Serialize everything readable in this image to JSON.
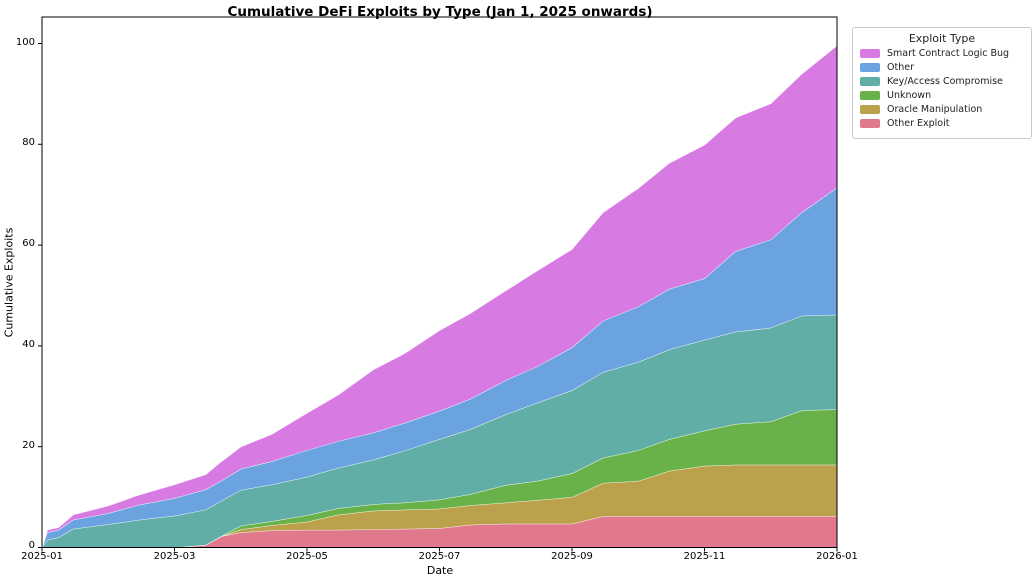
{
  "chart_data": {
    "type": "area",
    "stacked": true,
    "title": "Cumulative DeFi Exploits by Type (Jan 1, 2025 onwards)",
    "xlabel": "Date",
    "ylabel": "Cumulative Exploits",
    "legend_title": "Exploit Type",
    "legend_position": "outside upper right",
    "grid": false,
    "ylim": [
      0,
      105
    ],
    "y_ticks": [
      0,
      20,
      40,
      60,
      80,
      100
    ],
    "y_tick_labels": [
      "0",
      "20",
      "40",
      "60",
      "80",
      "100"
    ],
    "x_tick_labels": [
      "2025-01",
      "2025-03",
      "2025-05",
      "2025-07",
      "2025-09",
      "2025-11",
      "2026-01"
    ],
    "x_tick_months": [
      0,
      2,
      4,
      6,
      8,
      10,
      12
    ],
    "dates": [
      "2025-01-01",
      "2025-01-03",
      "2025-01-08",
      "2025-01-15",
      "2025-02-01",
      "2025-02-15",
      "2025-03-01",
      "2025-03-15",
      "2025-03-22",
      "2025-04-01",
      "2025-04-15",
      "2025-05-01",
      "2025-05-15",
      "2025-06-01",
      "2025-06-15",
      "2025-07-01",
      "2025-07-15",
      "2025-08-01",
      "2025-08-15",
      "2025-09-01",
      "2025-09-15",
      "2025-10-01",
      "2025-10-15",
      "2025-11-01",
      "2025-11-15",
      "2025-12-01",
      "2025-12-15",
      "2026-01-01"
    ],
    "x_months": [
      0,
      0.08,
      0.25,
      0.47,
      1,
      1.47,
      2,
      2.47,
      2.7,
      3,
      3.47,
      4,
      4.47,
      5,
      5.47,
      6,
      6.47,
      7,
      7.47,
      8,
      8.47,
      9,
      9.47,
      10,
      10.47,
      11,
      11.47,
      12
    ],
    "series": [
      {
        "name": "Other Exploit",
        "color": "#e1798c",
        "values": [
          0,
          0,
          0,
          0,
          0,
          0,
          0,
          0.5,
          2.2,
          3,
          3.4,
          3.5,
          3.5,
          3.6,
          3.7,
          3.8,
          4.5,
          4.7,
          4.7,
          4.7,
          6.2,
          6.2,
          6.2,
          6.2,
          6.2,
          6.2,
          6.2,
          6.2
        ]
      },
      {
        "name": "Oracle Manipulation",
        "color": "#bba14b",
        "values": [
          0,
          0,
          0,
          0,
          0,
          0,
          0,
          0,
          0,
          0.6,
          1,
          1.6,
          3,
          3.7,
          3.8,
          3.9,
          3.9,
          4.2,
          4.7,
          5.3,
          6.6,
          7,
          9,
          10,
          10.2,
          10.2,
          10.2,
          10.2
        ]
      },
      {
        "name": "Unknown",
        "color": "#69b24a",
        "values": [
          0,
          0,
          0,
          0,
          0,
          0,
          0,
          0,
          0,
          0.7,
          0.8,
          1.3,
          1.3,
          1.3,
          1.4,
          1.8,
          2.2,
          3.5,
          3.8,
          4.7,
          5,
          6.1,
          6.3,
          7,
          8.1,
          8.6,
          10.8,
          11
        ]
      },
      {
        "name": "Key/Access Compromise",
        "color": "#61aea7",
        "values": [
          0,
          1.5,
          2,
          3.7,
          4.6,
          5.5,
          6.3,
          7,
          7,
          7.1,
          7.3,
          7.6,
          8,
          8.8,
          10.3,
          12,
          12.9,
          14,
          15.5,
          16.5,
          17,
          17.5,
          17.8,
          18,
          18.3,
          18.6,
          18.8,
          18.8
        ]
      },
      {
        "name": "Other",
        "color": "#6aa3e0",
        "values": [
          0,
          1.5,
          1.5,
          1.8,
          2.2,
          3,
          3.5,
          4,
          4,
          4.2,
          4.6,
          5.3,
          5.3,
          5.4,
          5.5,
          5.6,
          6,
          6.8,
          7.2,
          8.5,
          10.2,
          11,
          12,
          12.2,
          16,
          17.5,
          20.5,
          25.2
        ]
      },
      {
        "name": "Smart Contract Logic Bug",
        "color": "#d77be3",
        "values": [
          0,
          0.5,
          0.5,
          1,
          1.5,
          2,
          2.7,
          3,
          3.8,
          4.4,
          5.4,
          7.4,
          9.2,
          12.5,
          13.8,
          16,
          17,
          17.8,
          19,
          19.5,
          21.5,
          23.5,
          25,
          26.5,
          26.5,
          27,
          27.5,
          28.2
        ]
      }
    ],
    "legend": [
      {
        "label": "Smart Contract Logic Bug",
        "color": "#d77be3"
      },
      {
        "label": "Other",
        "color": "#6aa3e0"
      },
      {
        "label": "Key/Access Compromise",
        "color": "#61aea7"
      },
      {
        "label": "Unknown",
        "color": "#69b24a"
      },
      {
        "label": "Oracle Manipulation",
        "color": "#bba14b"
      },
      {
        "label": "Other Exploit",
        "color": "#e1798c"
      }
    ]
  }
}
